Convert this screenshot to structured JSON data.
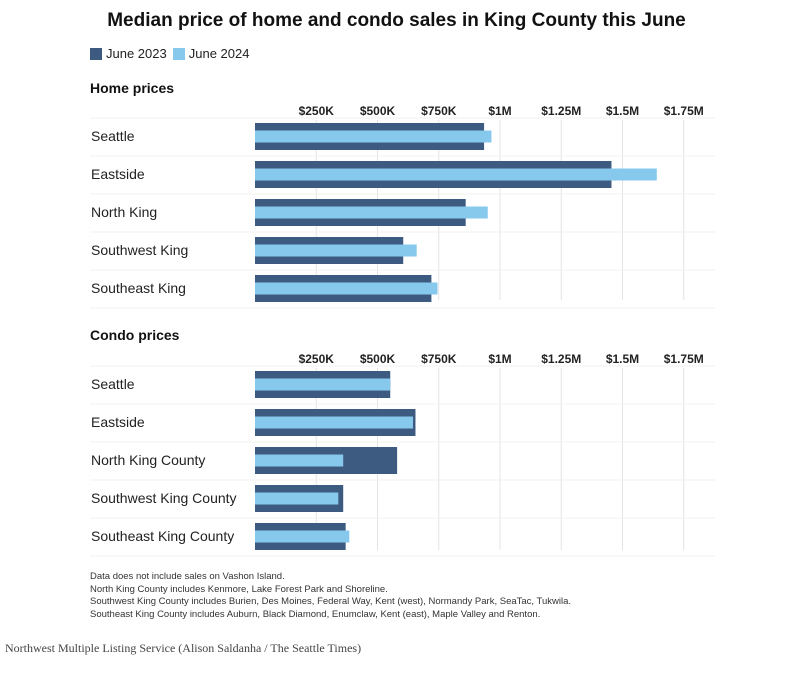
{
  "title": "Median price of home and condo sales in King County this June",
  "colors": {
    "june_2023": "#3d5a80",
    "june_2024": "#87c9ec",
    "grid": "#e4e4e4"
  },
  "legend": [
    {
      "label": "June 2023",
      "color": "#3d5a80"
    },
    {
      "label": "June 2024",
      "color": "#87c9ec"
    }
  ],
  "chart_data": [
    {
      "type": "bar",
      "orientation": "horizontal",
      "title": "Home prices",
      "categories": [
        "Seattle",
        "Eastside",
        "North King",
        "Southwest King",
        "Southeast King"
      ],
      "series": [
        {
          "name": "June 2023",
          "values": [
            935000,
            1455000,
            860000,
            605000,
            720000
          ]
        },
        {
          "name": "June 2024",
          "values": [
            965000,
            1640000,
            950000,
            660000,
            745000
          ]
        }
      ],
      "xlim": [
        0,
        1875000
      ],
      "ticks": [
        250000,
        500000,
        750000,
        1000000,
        1250000,
        1500000,
        1750000
      ],
      "tick_labels": [
        "$250K",
        "$500K",
        "$750K",
        "$1M",
        "$1.25M",
        "$1.5M",
        "$1.75M"
      ],
      "grid": true
    },
    {
      "type": "bar",
      "orientation": "horizontal",
      "title": "Condo prices",
      "categories": [
        "Seattle",
        "Eastside",
        "North King County",
        "Southwest King County",
        "Southeast King County"
      ],
      "series": [
        {
          "name": "June 2023",
          "values": [
            552000,
            655000,
            580000,
            360000,
            370000
          ]
        },
        {
          "name": "June 2024",
          "values": [
            552000,
            645000,
            360000,
            340000,
            385000
          ]
        }
      ],
      "xlim": [
        0,
        1875000
      ],
      "ticks": [
        250000,
        500000,
        750000,
        1000000,
        1250000,
        1500000,
        1750000
      ],
      "tick_labels": [
        "$250K",
        "$500K",
        "$750K",
        "$1M",
        "$1.25M",
        "$1.5M",
        "$1.75M"
      ],
      "grid": true
    }
  ],
  "notes": [
    "Data does not include sales on Vashon Island.",
    "North King County includes Kenmore, Lake Forest Park and Shoreline.",
    "Southwest King County includes Burien, Des Moines, Federal Way, Kent (west), Normandy Park, SeaTac, Tukwila.",
    "Southeast King County includes Auburn, Black Diamond, Enumclaw, Kent (east), Maple Valley and Renton."
  ],
  "credit": "Northwest Multiple Listing Service (Alison Saldanha / The Seattle Times)"
}
